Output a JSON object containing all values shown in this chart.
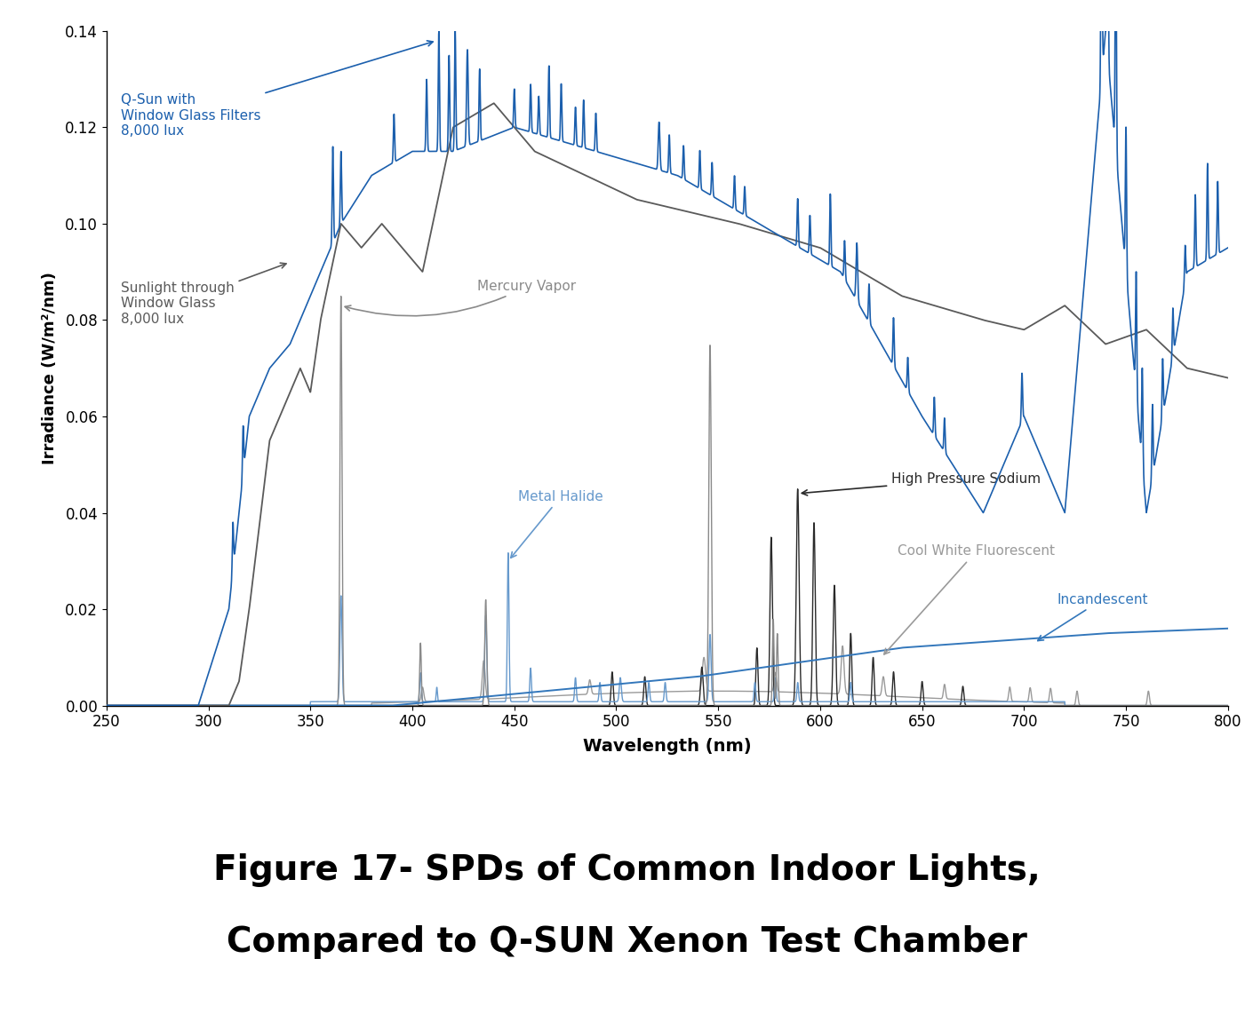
{
  "title": "Figure 17- SPDs of Common Indoor Lights,\nCompared to Q-SUN Xenon Test Chamber",
  "xlabel": "Wavelength (nm)",
  "ylabel": "Irradiance (W/m²/nm)",
  "xlim": [
    250,
    800
  ],
  "ylim": [
    0,
    0.14
  ],
  "yticks": [
    0.0,
    0.02,
    0.04,
    0.06,
    0.08,
    0.1,
    0.12,
    0.14
  ],
  "xticks": [
    250,
    300,
    350,
    400,
    450,
    500,
    550,
    600,
    650,
    700,
    750,
    800
  ],
  "colors": {
    "qsun": "#1B5FAD",
    "sunlight": "#5A5A5A",
    "mercury": "#8A8A8A",
    "metal_halide": "#6699CC",
    "high_pressure_sodium": "#2A2A2A",
    "cool_white_fluorescent": "#9A9A9A",
    "incandescent": "#3377BB"
  }
}
